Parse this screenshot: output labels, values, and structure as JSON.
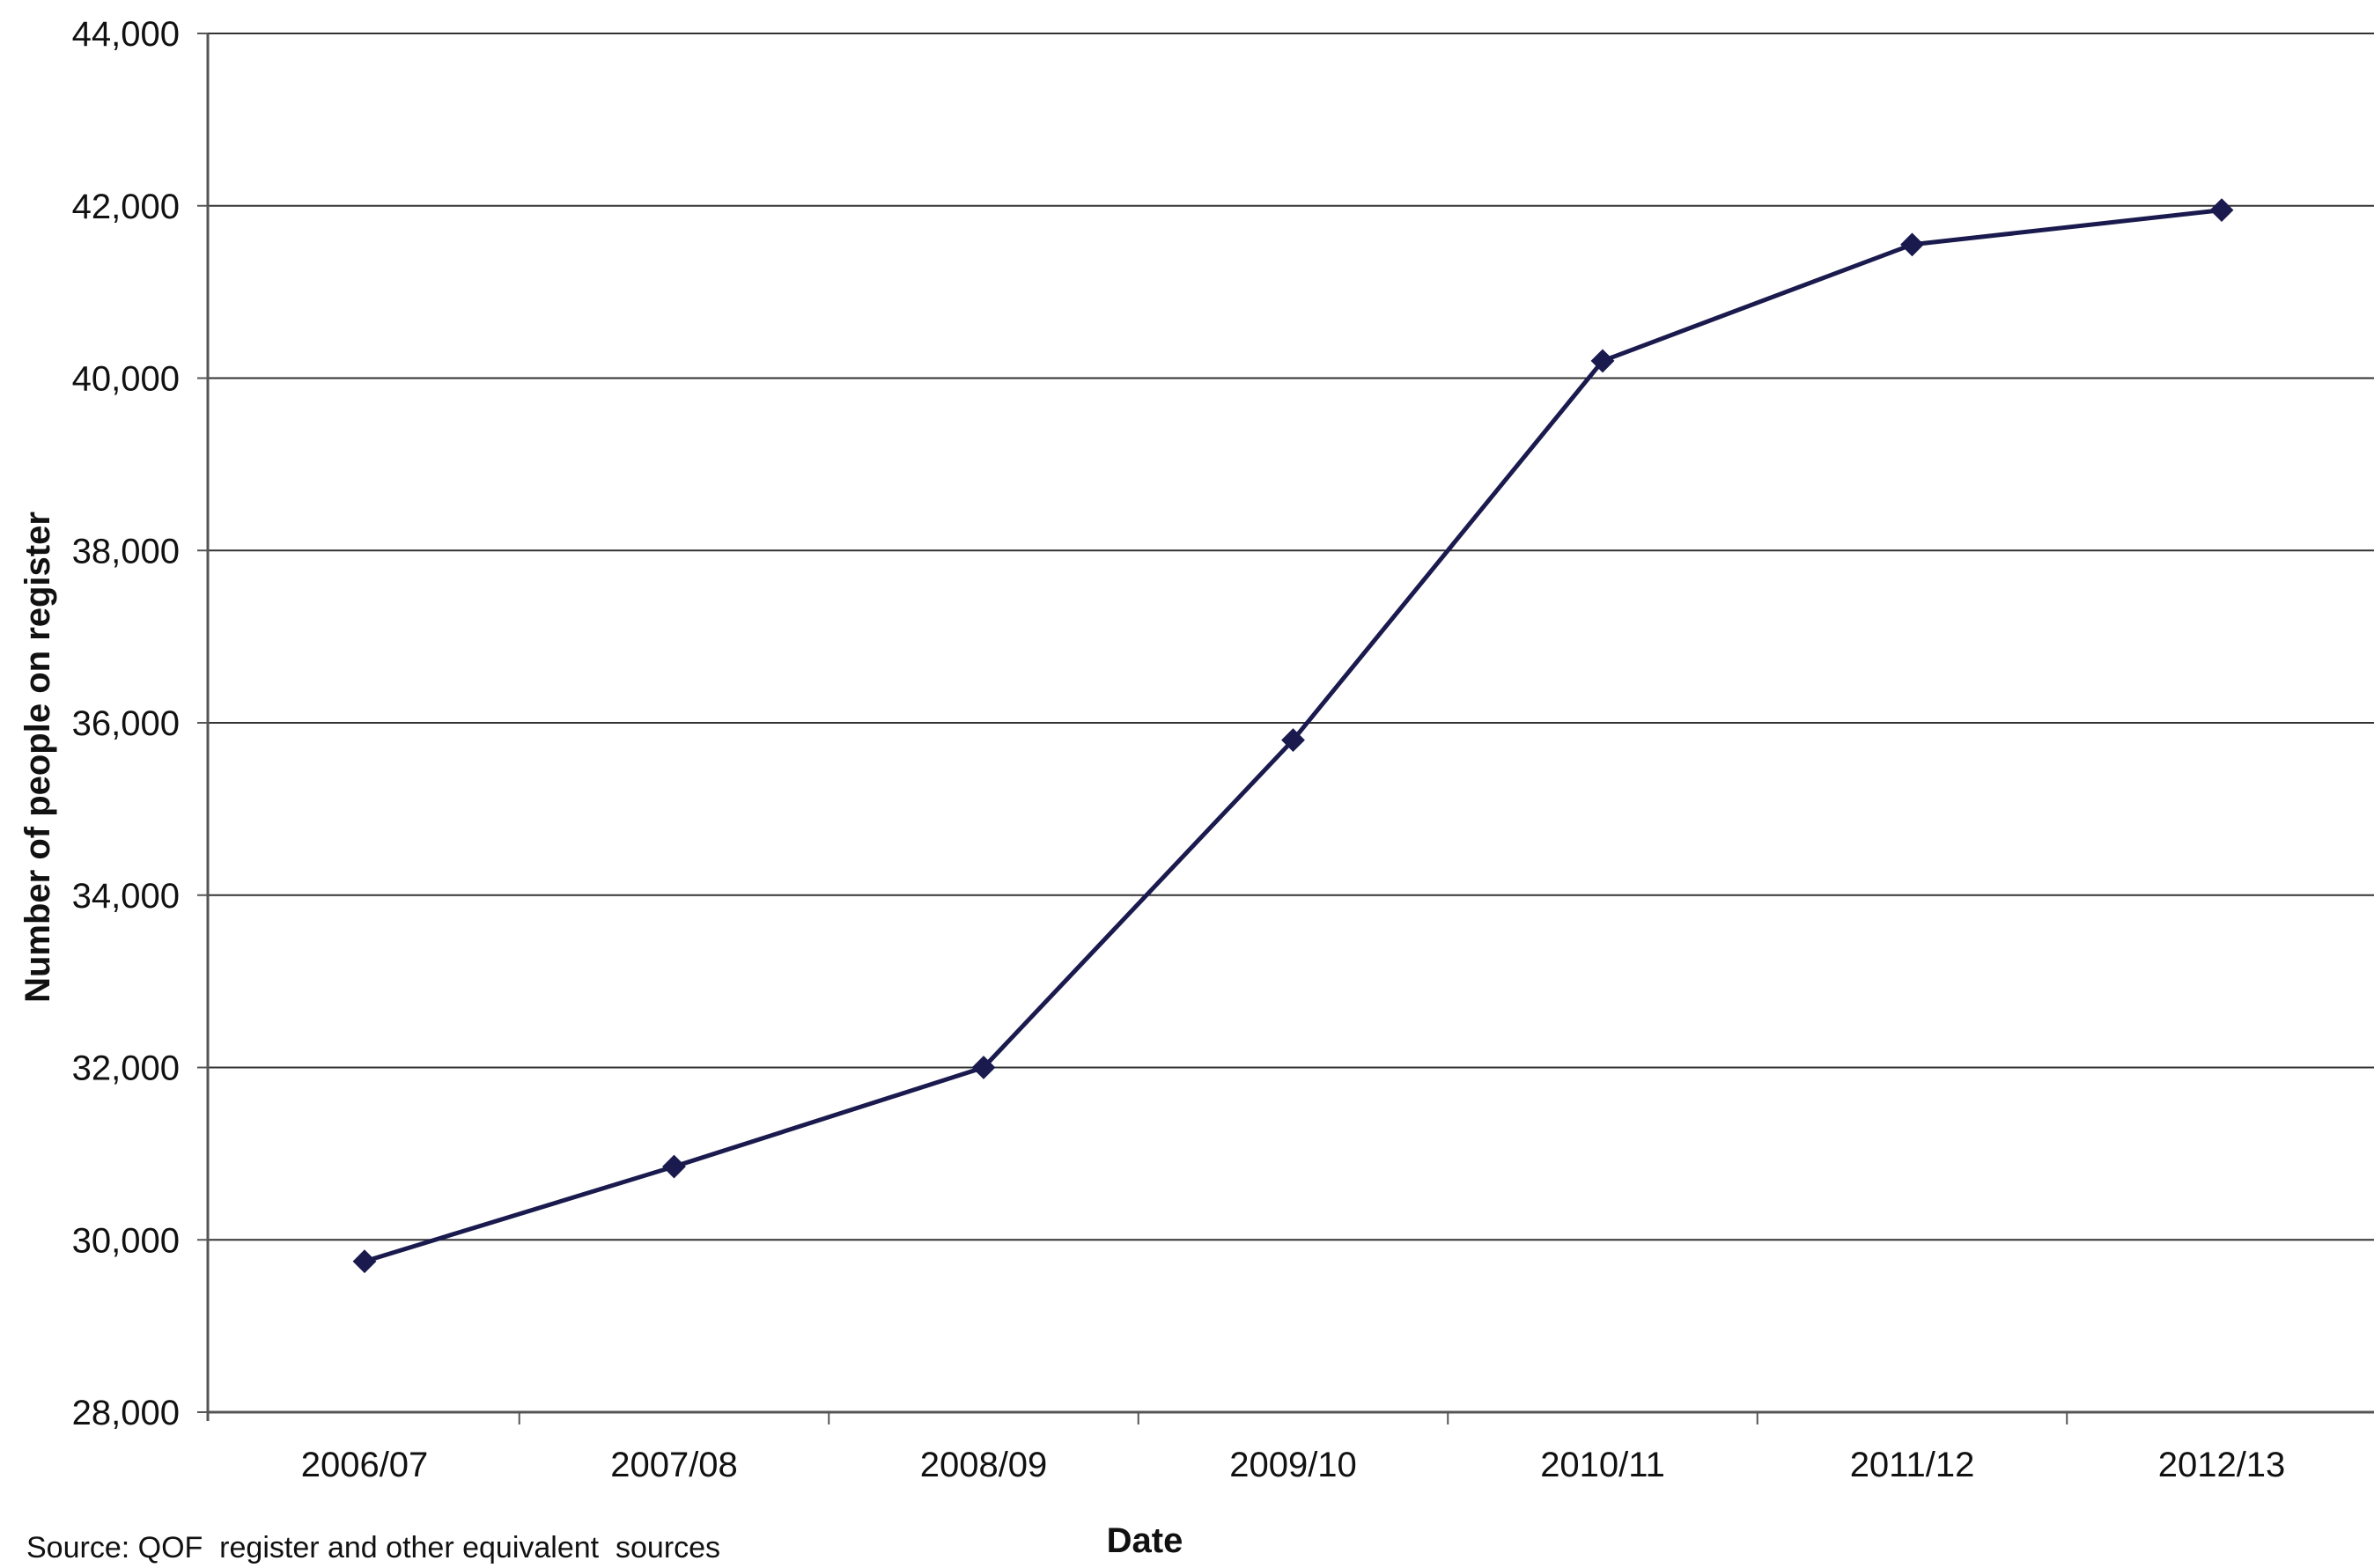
{
  "chart_data": {
    "type": "line",
    "xlabel": "Date",
    "ylabel": "Number of people on register",
    "categories": [
      "2006/07",
      "2007/08",
      "2008/09",
      "2009/10",
      "2010/11",
      "2011/12",
      "2012/13"
    ],
    "series": [
      {
        "values": [
          29750,
          30850,
          32000,
          35800,
          40200,
          41550,
          41950
        ]
      }
    ],
    "ylim": [
      28000,
      44000
    ],
    "yticks": [
      "28,000",
      "30,000",
      "32,000",
      "34,000",
      "36,000",
      "38,000",
      "40,000",
      "42,000",
      "44,000"
    ],
    "ytick_values": [
      28000,
      30000,
      32000,
      34000,
      36000,
      38000,
      40000,
      42000,
      44000
    ],
    "grid": true,
    "legend": "none",
    "line_color": "#1a1a4e",
    "source_note": "Source: QOF  register and other equivalent  sources"
  }
}
